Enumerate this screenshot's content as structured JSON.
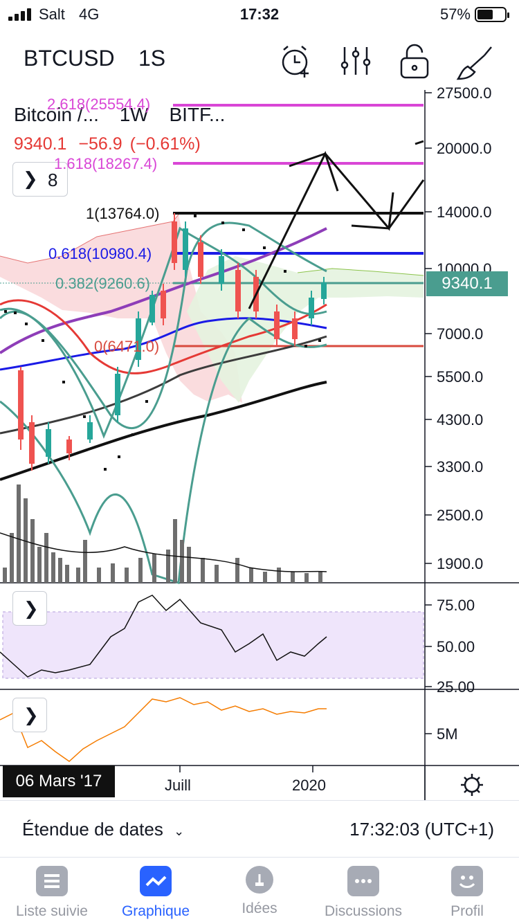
{
  "status": {
    "carrier": "Salt",
    "network": "4G",
    "time": "17:32",
    "battery": "57%"
  },
  "header": {
    "symbol": "BTCUSD",
    "interval": "1S",
    "icons": [
      "alarm-add-icon",
      "indicators-icon",
      "lock-icon",
      "drawing-tool-icon"
    ]
  },
  "legend": {
    "title": "Bitcoin /...",
    "interval": "1W",
    "exchange": "BITF...",
    "price": "9340.1",
    "change": "−56.9",
    "change_pct": "(−0.61%)",
    "indicators_count": "8"
  },
  "fib": {
    "l2618": "2.618(25554.4)",
    "l1618": "1.618(18267.4)",
    "l1": "1(13764.0)",
    "l0618": "0.618(10980.4)",
    "l0382": "0.382(9260.6)",
    "l0": "0(6471.0)"
  },
  "price_axis": [
    "27500.0",
    "20000.0",
    "14000.0",
    "10000.0",
    "7000.0",
    "5500.0",
    "4300.0",
    "3300.0",
    "2500.0",
    "1900.0"
  ],
  "current_price_tag": "9340.1",
  "rsi_axis": [
    "75.00",
    "50.00",
    "25.00"
  ],
  "lower_axis": [
    "5M"
  ],
  "time_axis": {
    "cursor_date": "06 Mars '17",
    "labels": [
      "Juill",
      "2020"
    ]
  },
  "rangebar": {
    "label": "Étendue de dates",
    "time": "17:32:03 (UTC+1)"
  },
  "tabs": [
    {
      "label": "Liste suivie",
      "icon": "watchlist-icon"
    },
    {
      "label": "Graphique",
      "icon": "chart-icon",
      "active": true
    },
    {
      "label": "Idées",
      "icon": "ideas-icon"
    },
    {
      "label": "Discussions",
      "icon": "chat-icon"
    },
    {
      "label": "Profil",
      "icon": "profile-icon"
    }
  ],
  "colors": {
    "accent": "#2962ff",
    "up": "#26a69a",
    "down": "#ef5350",
    "fib_magenta": "#d946d6",
    "fib_blue": "#1a1ae6",
    "price_tag": "#4a9d8f"
  }
}
